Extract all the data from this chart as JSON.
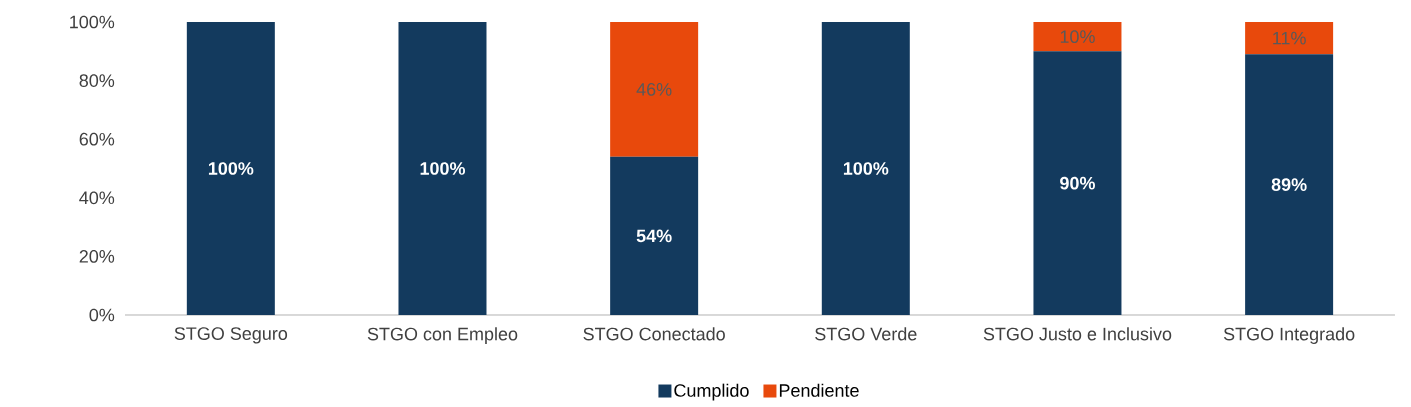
{
  "chart_data": {
    "type": "bar",
    "stacked": true,
    "categories": [
      "STGO Seguro",
      "STGO con Empleo",
      "STGO Conectado",
      "STGO Verde",
      "STGO Justo e Inclusivo",
      "STGO Integrado"
    ],
    "series": [
      {
        "name": "Cumplido",
        "color": "#133a5e",
        "values": [
          100,
          100,
          54,
          100,
          90,
          89
        ],
        "value_labels": [
          "100%",
          "100%",
          "54%",
          "100%",
          "90%",
          "89%"
        ]
      },
      {
        "name": "Pendiente",
        "color": "#e8490c",
        "values": [
          0,
          0,
          46,
          0,
          10,
          11
        ],
        "value_labels": [
          null,
          null,
          "46%",
          null,
          "10%",
          "11%"
        ]
      }
    ],
    "ylim": [
      0,
      100
    ],
    "yticks": [
      {
        "value": 0,
        "label": "0%"
      },
      {
        "value": 20,
        "label": "20%"
      },
      {
        "value": 40,
        "label": "40%"
      },
      {
        "value": 60,
        "label": "60%"
      },
      {
        "value": 80,
        "label": "80%"
      },
      {
        "value": 100,
        "label": "100%"
      }
    ],
    "legend": "bottom",
    "grid": false
  }
}
